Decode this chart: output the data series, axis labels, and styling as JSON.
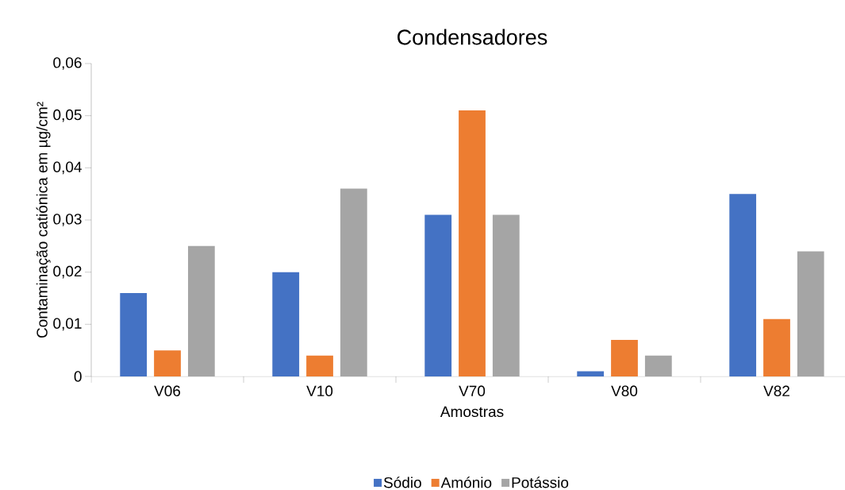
{
  "chart_data": {
    "type": "bar",
    "title": "Condensadores",
    "xlabel": "Amostras",
    "ylabel": "Contaminação catiónica em µg/cm²",
    "categories": [
      "V06",
      "V10",
      "V70",
      "V80",
      "V82"
    ],
    "series": [
      {
        "name": "Sódio",
        "color": "#4472c4",
        "values": [
          0.016,
          0.02,
          0.031,
          0.001,
          0.035
        ]
      },
      {
        "name": "Amónio",
        "color": "#ed7d31",
        "values": [
          0.005,
          0.004,
          0.051,
          0.007,
          0.011
        ]
      },
      {
        "name": "Potássio",
        "color": "#a5a5a5",
        "values": [
          0.025,
          0.036,
          0.031,
          0.004,
          0.024
        ]
      }
    ],
    "ylim": [
      0,
      0.06
    ],
    "yticks": [
      0,
      {
        "value": 0.01,
        "label": "0,01"
      },
      {
        "value": 0.02,
        "label": "0,02"
      },
      {
        "value": 0.03,
        "label": "0,03"
      },
      {
        "value": 0.04,
        "label": "0,04"
      },
      {
        "value": 0.05,
        "label": "0,05"
      },
      {
        "value": 0.06,
        "label": "0,06"
      }
    ],
    "grid": false,
    "legend": "bottom"
  }
}
